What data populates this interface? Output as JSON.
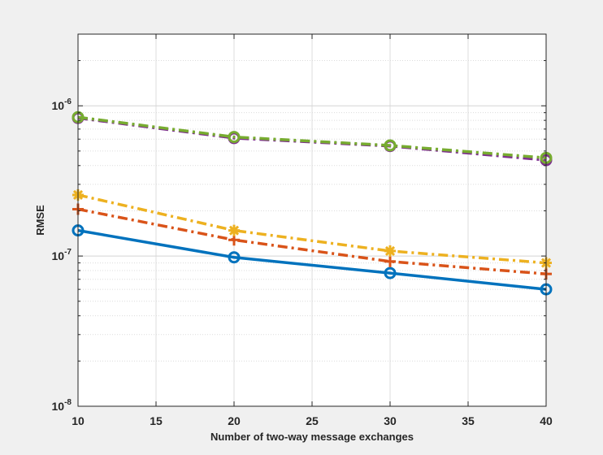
{
  "chart_data": {
    "type": "line",
    "title": "",
    "xlabel": "Number of two-way message exchanges",
    "ylabel": "RMSE",
    "x": [
      10,
      20,
      30,
      40
    ],
    "xlim": [
      10,
      40
    ],
    "ylim": [
      1e-08,
      3e-06
    ],
    "yscale": "log",
    "grid": true,
    "x_ticks": [
      10,
      15,
      20,
      25,
      30,
      35,
      40
    ],
    "y_ticks": [
      {
        "value": 1e-08,
        "base": "10",
        "exp": "-8"
      },
      {
        "value": 1e-07,
        "base": "10",
        "exp": "-7"
      },
      {
        "value": 1e-06,
        "base": "10",
        "exp": "-6"
      }
    ],
    "series": [
      {
        "values": [
          1.48e-07,
          9.8e-08,
          7.7e-08,
          6e-08
        ],
        "color": "#0072bd",
        "line_style": "solid",
        "marker": "circle"
      },
      {
        "values": [
          2.05e-07,
          1.28e-07,
          9.2e-08,
          7.6e-08
        ],
        "color": "#d95319",
        "line_style": "dash-dot",
        "marker": "plus"
      },
      {
        "values": [
          2.55e-07,
          1.48e-07,
          1.08e-07,
          9e-08
        ],
        "color": "#edb120",
        "line_style": "dash-dot",
        "marker": "asterisk"
      },
      {
        "values": [
          8.3e-07,
          6.1e-07,
          5.4e-07,
          4.35e-07
        ],
        "color": "#7e2f8e",
        "line_style": "dash-dot",
        "marker": "circle"
      },
      {
        "values": [
          8.4e-07,
          6.2e-07,
          5.45e-07,
          4.5e-07
        ],
        "color": "#77ac30",
        "line_style": "dash-dot",
        "marker": "circle"
      }
    ]
  }
}
